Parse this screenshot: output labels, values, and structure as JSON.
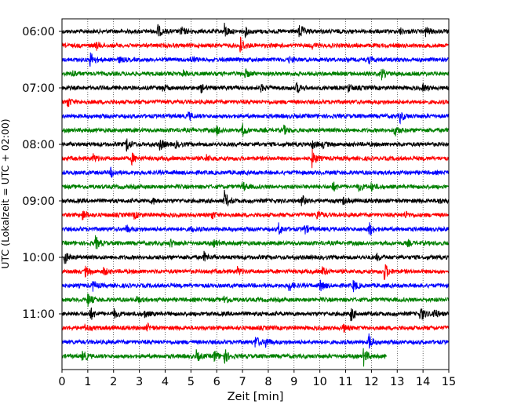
{
  "chart_data": {
    "type": "line",
    "title": "",
    "xlabel": "Zeit  [min]",
    "ylabel": "UTC (Lokalzeit = UTC + 02:00)",
    "xlim": [
      0,
      15
    ],
    "x_ticks": [
      0,
      1,
      2,
      3,
      4,
      5,
      6,
      7,
      8,
      9,
      10,
      11,
      12,
      13,
      14,
      15
    ],
    "x_tick_labels": [
      "0",
      "1",
      "2",
      "3",
      "4",
      "5",
      "6",
      "7",
      "8",
      "9",
      "10",
      "11",
      "12",
      "13",
      "14",
      "15"
    ],
    "y_tick_labels": [
      "06:00",
      "07:00",
      "08:00",
      "09:00",
      "10:00",
      "11:00"
    ],
    "y_tick_rows": [
      0,
      4,
      8,
      12,
      16,
      20
    ],
    "minutes_per_row": 15,
    "grid": "vertical dotted at each minute",
    "color_cycle": [
      "#000000",
      "#ff0000",
      "#0000ff",
      "#008000"
    ],
    "series": [
      {
        "start": "06:00",
        "color": "#000000",
        "end_min": 15,
        "events": [
          [
            3.7,
            9
          ],
          [
            4.6,
            6
          ],
          [
            6.3,
            9
          ],
          [
            7.1,
            5
          ],
          [
            9.2,
            10
          ],
          [
            13.1,
            4
          ],
          [
            14.1,
            6
          ]
        ]
      },
      {
        "start": "06:15",
        "color": "#ff0000",
        "end_min": 15,
        "events": [
          [
            1.3,
            6
          ],
          [
            6.9,
            12
          ],
          [
            9.7,
            3
          ]
        ]
      },
      {
        "start": "06:30",
        "color": "#0000ff",
        "end_min": 15,
        "events": [
          [
            1.1,
            10
          ],
          [
            2.2,
            3
          ],
          [
            5.0,
            4
          ],
          [
            8.8,
            3
          ],
          [
            11.9,
            4
          ]
        ]
      },
      {
        "start": "06:45",
        "color": "#008000",
        "end_min": 15,
        "events": [
          [
            0.4,
            5
          ],
          [
            4.7,
            4
          ],
          [
            7.1,
            5
          ],
          [
            12.4,
            7
          ]
        ]
      },
      {
        "start": "07:00",
        "color": "#000000",
        "end_min": 15,
        "events": [
          [
            3.9,
            4
          ],
          [
            5.4,
            5
          ],
          [
            7.7,
            4
          ],
          [
            9.1,
            7
          ],
          [
            11.1,
            5
          ],
          [
            14.0,
            4
          ]
        ]
      },
      {
        "start": "07:15",
        "color": "#ff0000",
        "end_min": 15,
        "events": [
          [
            0.2,
            7
          ]
        ]
      },
      {
        "start": "07:30",
        "color": "#0000ff",
        "end_min": 15,
        "events": [
          [
            4.9,
            5
          ],
          [
            13.1,
            8
          ]
        ]
      },
      {
        "start": "07:45",
        "color": "#008000",
        "end_min": 15,
        "events": [
          [
            6.0,
            6
          ],
          [
            7.0,
            8
          ],
          [
            8.6,
            5
          ],
          [
            12.9,
            7
          ]
        ]
      },
      {
        "start": "08:00",
        "color": "#000000",
        "end_min": 15,
        "events": [
          [
            2.5,
            9
          ],
          [
            3.8,
            8
          ],
          [
            4.4,
            4
          ],
          [
            9.7,
            5
          ],
          [
            10.1,
            4
          ]
        ]
      },
      {
        "start": "08:15",
        "color": "#ff0000",
        "end_min": 15,
        "events": [
          [
            1.2,
            5
          ],
          [
            2.7,
            7
          ],
          [
            5.6,
            4
          ],
          [
            9.7,
            11
          ]
        ]
      },
      {
        "start": "08:30",
        "color": "#0000ff",
        "end_min": 15,
        "events": [
          [
            1.9,
            6
          ]
        ]
      },
      {
        "start": "08:45",
        "color": "#008000",
        "end_min": 15,
        "events": [
          [
            7.0,
            6
          ],
          [
            10.5,
            6
          ],
          [
            11.5,
            5
          ],
          [
            12.0,
            5
          ]
        ]
      },
      {
        "start": "09:00",
        "color": "#000000",
        "end_min": 15,
        "events": [
          [
            3.5,
            4
          ],
          [
            6.3,
            12
          ],
          [
            9.3,
            7
          ],
          [
            10.9,
            4
          ],
          [
            14.6,
            3
          ]
        ]
      },
      {
        "start": "09:15",
        "color": "#ff0000",
        "end_min": 15,
        "events": [
          [
            0.8,
            6
          ],
          [
            2.8,
            4
          ],
          [
            5.8,
            5
          ],
          [
            9.9,
            6
          ],
          [
            13.3,
            4
          ]
        ]
      },
      {
        "start": "09:30",
        "color": "#0000ff",
        "end_min": 15,
        "events": [
          [
            2.5,
            5
          ],
          [
            5.0,
            3
          ],
          [
            8.4,
            7
          ],
          [
            9.4,
            6
          ],
          [
            11.9,
            10
          ]
        ]
      },
      {
        "start": "09:45",
        "color": "#008000",
        "end_min": 15,
        "events": [
          [
            1.3,
            9
          ],
          [
            4.2,
            5
          ],
          [
            5.9,
            4
          ],
          [
            13.4,
            3
          ]
        ]
      },
      {
        "start": "10:00",
        "color": "#000000",
        "end_min": 15,
        "events": [
          [
            0.1,
            8
          ],
          [
            5.5,
            6
          ],
          [
            12.2,
            4
          ]
        ]
      },
      {
        "start": "10:15",
        "color": "#ff0000",
        "end_min": 15,
        "events": [
          [
            0.9,
            6
          ],
          [
            1.6,
            5
          ],
          [
            6.8,
            5
          ],
          [
            10.1,
            6
          ],
          [
            12.5,
            12
          ]
        ]
      },
      {
        "start": "10:30",
        "color": "#0000ff",
        "end_min": 15,
        "events": [
          [
            1.2,
            6
          ],
          [
            8.8,
            7
          ],
          [
            10.0,
            8
          ],
          [
            11.3,
            7
          ]
        ]
      },
      {
        "start": "10:45",
        "color": "#008000",
        "end_min": 15,
        "events": [
          [
            1.0,
            8
          ],
          [
            2.9,
            4
          ],
          [
            6.3,
            6
          ]
        ]
      },
      {
        "start": "11:00",
        "color": "#000000",
        "end_min": 15,
        "events": [
          [
            1.1,
            8
          ],
          [
            2.0,
            6
          ],
          [
            3.2,
            4
          ],
          [
            11.2,
            9
          ],
          [
            13.9,
            11
          ],
          [
            14.4,
            8
          ]
        ]
      },
      {
        "start": "11:15",
        "color": "#ff0000",
        "end_min": 15,
        "events": [
          [
            0.9,
            4
          ],
          [
            3.3,
            5
          ],
          [
            10.9,
            5
          ]
        ]
      },
      {
        "start": "11:30",
        "color": "#0000ff",
        "end_min": 15,
        "events": [
          [
            7.5,
            8
          ],
          [
            7.9,
            6
          ],
          [
            11.9,
            10
          ]
        ]
      },
      {
        "start": "11:45",
        "color": "#008000",
        "end_min": 12.6,
        "events": [
          [
            0.8,
            7
          ],
          [
            5.2,
            7
          ],
          [
            5.9,
            8
          ],
          [
            6.3,
            9
          ],
          [
            11.7,
            11
          ]
        ]
      }
    ]
  }
}
